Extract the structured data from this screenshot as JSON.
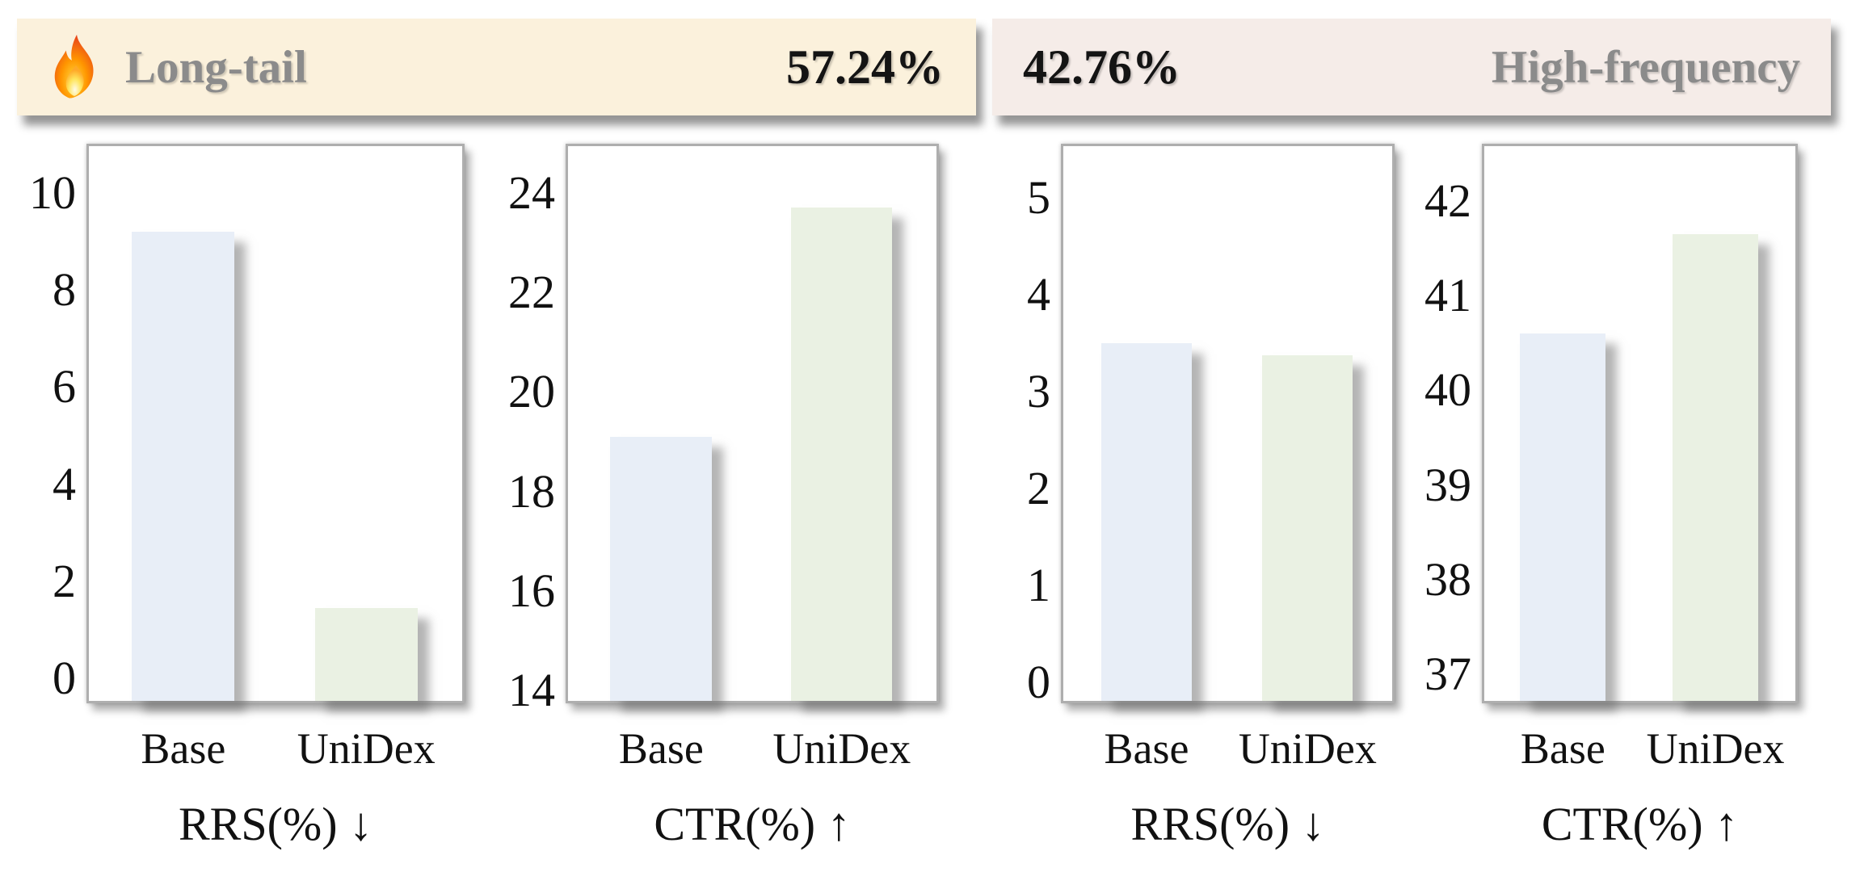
{
  "banners": [
    {
      "label": "Long-tail",
      "value": "57.24%",
      "bg": "#FBF1DC",
      "icon": "fire-icon"
    },
    {
      "label": "High-frequency",
      "value": "42.76%",
      "bg": "#F5ECE8"
    }
  ],
  "colors": {
    "base_bar": "#E8EEF7",
    "unidex_bar": "#EAF1E3",
    "panel_border": "#AEAEAE",
    "banner_label_gray": "#8B8B8B",
    "banner_value_black": "#141414"
  },
  "chart_data": [
    {
      "type": "bar",
      "group": "Long-tail",
      "title": "RRS(%) ↓",
      "categories": [
        "Base",
        "UniDex"
      ],
      "values": [
        9.2,
        1.45
      ],
      "ticks": [
        0,
        2,
        4,
        6,
        8,
        10
      ],
      "ylim": [
        -0.47,
        10.97
      ],
      "grid": false,
      "legend": "none"
    },
    {
      "type": "bar",
      "group": "Long-tail",
      "title": "CTR(%) ↑",
      "categories": [
        "Base",
        "UniDex"
      ],
      "values": [
        19.1,
        23.7
      ],
      "ticks": [
        14,
        16,
        18,
        20,
        22,
        24
      ],
      "ylim": [
        13.79,
        24.94
      ],
      "grid": false,
      "legend": "none"
    },
    {
      "type": "bar",
      "group": "High-frequency",
      "title": "RRS(%) ↓",
      "categories": [
        "Base",
        "UniDex"
      ],
      "values": [
        3.5,
        3.37
      ],
      "ticks": [
        0,
        1,
        2,
        3,
        4,
        5
      ],
      "ylim": [
        -0.19,
        5.53
      ],
      "grid": false,
      "legend": "none"
    },
    {
      "type": "bar",
      "group": "High-frequency",
      "title": "CTR(%) ↑",
      "categories": [
        "Base",
        "UniDex"
      ],
      "values": [
        40.6,
        41.65
      ],
      "ticks": [
        37,
        38,
        39,
        40,
        41,
        42
      ],
      "ylim": [
        36.72,
        42.58
      ],
      "grid": false,
      "legend": "none"
    }
  ]
}
